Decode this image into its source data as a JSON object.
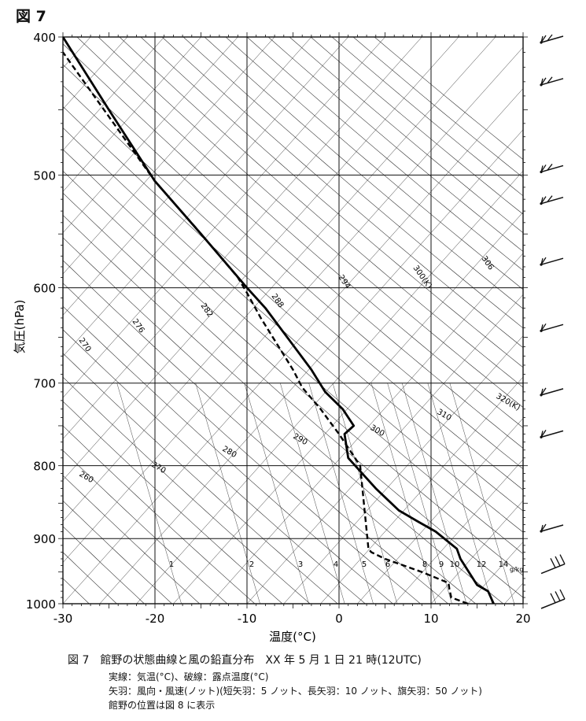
{
  "figure_label": "図 7",
  "caption": {
    "title": "図 7　館野の状態曲線と風の鉛直分布　XX 年 5 月 1 日 21 時(12UTC)",
    "line1": "実線：気温(°C)、破線：露点温度(°C)",
    "line2": "矢羽：風向・風速(ノット)(短矢羽：5 ノット、長矢羽：10 ノット、旗矢羽：50 ノット)",
    "line3": "館野の位置は図 8 に表示"
  },
  "chart_data": {
    "type": "line",
    "xlabel": "温度(°C)",
    "ylabel": "気圧(hPa)",
    "xlim": [
      -30,
      20
    ],
    "ylim": [
      1000,
      400
    ],
    "y_scale": "log",
    "grid": true,
    "x_ticks": [
      -30,
      -20,
      -10,
      0,
      10,
      20
    ],
    "x_tick_labels": [
      "-30",
      "-20",
      "-10",
      "0",
      "10",
      "20"
    ],
    "y_ticks": [
      400,
      500,
      600,
      700,
      800,
      900,
      1000
    ],
    "y_tick_labels": [
      "400",
      "500",
      "600",
      "700",
      "800",
      "900",
      "1000"
    ],
    "series": [
      {
        "name": "気温",
        "style": "solid",
        "points": [
          [
            16.8,
            1000
          ],
          [
            16.2,
            980
          ],
          [
            15.0,
            970
          ],
          [
            13.2,
            930
          ],
          [
            12.8,
            915
          ],
          [
            10.5,
            890
          ],
          [
            8.5,
            875
          ],
          [
            6.5,
            860
          ],
          [
            4.0,
            830
          ],
          [
            1.0,
            790
          ],
          [
            0.6,
            760
          ],
          [
            1.6,
            750
          ],
          [
            0.4,
            730
          ],
          [
            -1.5,
            710
          ],
          [
            -3.0,
            685
          ],
          [
            -8.0,
            620
          ],
          [
            -10.0,
            600
          ],
          [
            -15.0,
            550
          ],
          [
            -20.0,
            505
          ],
          [
            -25.0,
            450
          ],
          [
            -30.0,
            400
          ]
        ]
      },
      {
        "name": "露点温度",
        "style": "dashed",
        "points": [
          [
            14.0,
            1000
          ],
          [
            12.2,
            990
          ],
          [
            12.0,
            977
          ],
          [
            11.9,
            967
          ],
          [
            9.0,
            950
          ],
          [
            5.0,
            930
          ],
          [
            3.5,
            920
          ],
          [
            3.2,
            915
          ],
          [
            2.7,
            850
          ],
          [
            2.3,
            800
          ],
          [
            0.0,
            760
          ],
          [
            -1.0,
            745
          ],
          [
            -2.0,
            730
          ],
          [
            -4.0,
            705
          ],
          [
            -5.0,
            685
          ],
          [
            -8.5,
            630
          ],
          [
            -10.0,
            605
          ],
          [
            -11.0,
            590
          ],
          [
            -15.5,
            545
          ],
          [
            -20.0,
            505
          ],
          [
            -30.0,
            410
          ]
        ]
      }
    ],
    "dry_adiabat_labels": [
      "270",
      "276",
      "282",
      "288",
      "294",
      "300(K)",
      "306"
    ],
    "moist_adiabat_labels": [
      "260",
      "270",
      "280",
      "290",
      "300",
      "310",
      "320(K)"
    ],
    "mixing_ratio_labels": [
      "1",
      "2",
      "3",
      "4",
      "5",
      "6",
      "8",
      "9",
      "10",
      "12",
      "14"
    ],
    "mixing_ratio_unit": "g/kg",
    "wind_barbs": [
      {
        "pressure": 400,
        "speed_knots": 20
      },
      {
        "pressure": 430,
        "speed_knots": 20
      },
      {
        "pressure": 495,
        "speed_knots": 20
      },
      {
        "pressure": 521,
        "speed_knots": 20
      },
      {
        "pressure": 575,
        "speed_knots": 15
      },
      {
        "pressure": 640,
        "speed_knots": 15
      },
      {
        "pressure": 710,
        "speed_knots": 15
      },
      {
        "pressure": 760,
        "speed_knots": 15
      },
      {
        "pressure": 885,
        "speed_knots": 15
      },
      {
        "pressure": 945,
        "speed_knots": 30
      },
      {
        "pressure": 1000,
        "speed_knots": 30
      }
    ]
  }
}
